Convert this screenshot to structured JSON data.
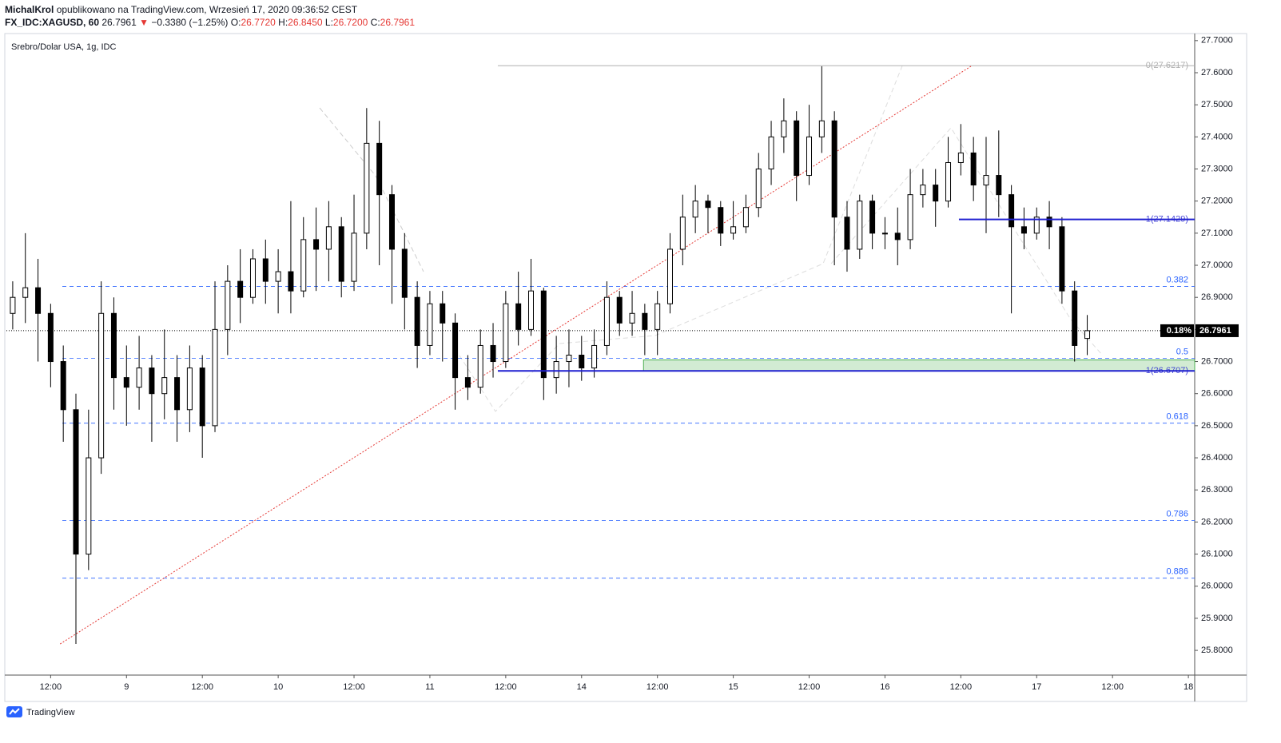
{
  "header": {
    "author": "MichalKrol",
    "published": "opublikowano na TradingView.com, Wrzesień 17, 2020 09:36:52 CEST",
    "symbol": "FX_IDC:XAGUSD, 60",
    "last": "26.7961",
    "arrow": "▼",
    "change": "−0.3380 (−1.25%)",
    "ohlc": [
      {
        "key": "O:",
        "val": "26.7720"
      },
      {
        "key": "H:",
        "val": "26.8450"
      },
      {
        "key": "L:",
        "val": "26.7200"
      },
      {
        "key": "C:",
        "val": "26.7961"
      }
    ]
  },
  "footer": {
    "brand": "TradingView"
  },
  "chart_data": {
    "type": "candlestick",
    "title": "Srebro/Dolar USA, 1g, IDC",
    "up_color": "#ffffff",
    "down_color": "#000000",
    "wick_color": "#000000",
    "x": [
      -6,
      -4,
      -2,
      0,
      2,
      4,
      6,
      8,
      10,
      12,
      14,
      16,
      18,
      20,
      22,
      24,
      26,
      28,
      30,
      32,
      34,
      36,
      38,
      40,
      42,
      44,
      46,
      48,
      50,
      52,
      54,
      56,
      58,
      60,
      62,
      64,
      66,
      68,
      70,
      72,
      74,
      76,
      78,
      80,
      82,
      84,
      86,
      88,
      90,
      92,
      94,
      96,
      98,
      100,
      102,
      104,
      106,
      108,
      110,
      112,
      114,
      116,
      118,
      120,
      122,
      124,
      126,
      128,
      130,
      132,
      134,
      136,
      138,
      140,
      142,
      144,
      146,
      148,
      150,
      152,
      154,
      156,
      158,
      160,
      162,
      164
    ],
    "open": [
      26.85,
      26.9,
      26.93,
      26.85,
      26.7,
      26.55,
      26.1,
      26.4,
      26.85,
      26.65,
      26.62,
      26.68,
      26.6,
      26.65,
      26.55,
      26.68,
      26.5,
      26.8,
      26.95,
      26.9,
      27.02,
      26.95,
      26.98,
      26.92,
      27.08,
      27.05,
      27.12,
      26.95,
      27.1,
      27.38,
      27.22,
      27.05,
      26.9,
      26.75,
      26.88,
      26.82,
      26.65,
      26.62,
      26.75,
      26.7,
      26.88,
      26.8,
      26.92,
      26.65,
      26.7,
      26.72,
      26.68,
      26.75,
      26.9,
      26.82,
      26.85,
      26.8,
      26.88,
      27.05,
      27.15,
      27.2,
      27.18,
      27.1,
      27.12,
      27.18,
      27.3,
      27.4,
      27.45,
      27.28,
      27.4,
      27.45,
      27.15,
      27.05,
      27.2,
      27.1,
      27.1,
      27.08,
      27.22,
      27.25,
      27.2,
      27.32,
      27.35,
      27.25,
      27.28,
      27.22,
      27.12,
      27.1,
      27.15,
      27.12,
      26.92,
      26.772
    ],
    "high": [
      26.95,
      27.1,
      27.02,
      26.88,
      26.75,
      26.6,
      26.55,
      26.95,
      26.9,
      26.75,
      26.78,
      26.72,
      26.8,
      26.72,
      26.75,
      26.72,
      26.95,
      27.0,
      27.05,
      27.05,
      27.08,
      27.05,
      27.2,
      27.15,
      27.18,
      27.2,
      27.15,
      27.22,
      27.49,
      27.45,
      27.25,
      27.1,
      26.95,
      26.92,
      26.92,
      26.85,
      26.72,
      26.8,
      26.82,
      26.92,
      26.98,
      27.02,
      26.93,
      26.78,
      26.8,
      26.78,
      26.8,
      26.95,
      26.92,
      26.92,
      26.88,
      26.92,
      27.1,
      27.22,
      27.25,
      27.22,
      27.2,
      27.2,
      27.22,
      27.35,
      27.45,
      27.52,
      27.48,
      27.5,
      27.62,
      27.48,
      27.2,
      27.22,
      27.22,
      27.15,
      27.18,
      27.3,
      27.3,
      27.3,
      27.4,
      27.44,
      27.4,
      27.4,
      27.42,
      27.25,
      27.18,
      27.18,
      27.2,
      27.15,
      26.95,
      26.845
    ],
    "low": [
      26.8,
      26.82,
      26.7,
      26.62,
      26.45,
      25.82,
      26.05,
      26.35,
      26.55,
      26.5,
      26.55,
      26.45,
      26.52,
      26.45,
      26.48,
      26.4,
      26.48,
      26.72,
      26.82,
      26.88,
      26.88,
      26.85,
      26.85,
      26.9,
      26.92,
      26.95,
      26.9,
      26.92,
      27.05,
      27.0,
      26.88,
      26.8,
      26.68,
      26.72,
      26.7,
      26.55,
      26.58,
      26.6,
      26.65,
      26.68,
      26.75,
      26.78,
      26.58,
      26.6,
      26.62,
      26.64,
      26.65,
      26.72,
      26.78,
      26.78,
      26.72,
      26.72,
      26.85,
      27.0,
      27.1,
      27.1,
      27.06,
      27.08,
      27.1,
      27.15,
      27.25,
      27.35,
      27.2,
      27.25,
      27.35,
      27.0,
      26.98,
      27.02,
      27.05,
      27.05,
      27.0,
      27.05,
      27.18,
      27.12,
      27.18,
      27.28,
      27.2,
      27.1,
      27.15,
      26.85,
      27.05,
      27.08,
      27.05,
      26.88,
      26.7,
      26.72
    ],
    "close": [
      26.9,
      26.93,
      26.85,
      26.7,
      26.55,
      26.1,
      26.4,
      26.85,
      26.65,
      26.62,
      26.68,
      26.6,
      26.65,
      26.55,
      26.68,
      26.5,
      26.8,
      26.95,
      26.9,
      27.02,
      26.95,
      26.98,
      26.92,
      27.08,
      27.05,
      27.12,
      26.95,
      27.1,
      27.38,
      27.22,
      27.05,
      26.9,
      26.75,
      26.88,
      26.82,
      26.65,
      26.62,
      26.75,
      26.7,
      26.88,
      26.8,
      26.92,
      26.65,
      26.7,
      26.72,
      26.68,
      26.75,
      26.9,
      26.82,
      26.85,
      26.8,
      26.88,
      27.05,
      27.15,
      27.2,
      27.18,
      27.1,
      27.12,
      27.18,
      27.3,
      27.4,
      27.45,
      27.28,
      27.4,
      27.45,
      27.15,
      27.05,
      27.2,
      27.1,
      27.1,
      27.08,
      27.22,
      27.25,
      27.2,
      27.32,
      27.35,
      27.25,
      27.28,
      27.22,
      27.12,
      27.1,
      27.15,
      27.12,
      26.92,
      26.75,
      26.7961
    ],
    "xlim": [
      -7,
      181
    ],
    "ylim": [
      25.723,
      27.722
    ],
    "xticks": [
      {
        "value": 0,
        "label": "12:00"
      },
      {
        "value": 12,
        "label": "9"
      },
      {
        "value": 24,
        "label": "12:00"
      },
      {
        "value": 36,
        "label": "10"
      },
      {
        "value": 48,
        "label": "12:00"
      },
      {
        "value": 60,
        "label": "11"
      },
      {
        "value": 72,
        "label": "12:00"
      },
      {
        "value": 84,
        "label": "14"
      },
      {
        "value": 96,
        "label": "12:00"
      },
      {
        "value": 108,
        "label": "15"
      },
      {
        "value": 120,
        "label": "12:00"
      },
      {
        "value": 132,
        "label": "16"
      },
      {
        "value": 144,
        "label": "12:00"
      },
      {
        "value": 156,
        "label": "17"
      },
      {
        "value": 168,
        "label": "12:00"
      },
      {
        "value": 180,
        "label": "18"
      }
    ],
    "yticks": [
      {
        "value": 25.8,
        "label": "25.8000"
      },
      {
        "value": 25.9,
        "label": "25.9000"
      },
      {
        "value": 26.0,
        "label": "26.0000"
      },
      {
        "value": 26.1,
        "label": "26.1000"
      },
      {
        "value": 26.2,
        "label": "26.2000"
      },
      {
        "value": 26.3,
        "label": "26.3000"
      },
      {
        "value": 26.4,
        "label": "26.4000"
      },
      {
        "value": 26.5,
        "label": "26.5000"
      },
      {
        "value": 26.6,
        "label": "26.6000"
      },
      {
        "value": 26.7,
        "label": "26.7000"
      },
      {
        "value": 26.8,
        "label": "26.8000"
      },
      {
        "value": 26.9,
        "label": "26.9000"
      },
      {
        "value": 27.0,
        "label": "27.0000"
      },
      {
        "value": 27.1,
        "label": "27.1000"
      },
      {
        "value": 27.2,
        "label": "27.2000"
      },
      {
        "value": 27.3,
        "label": "27.3000"
      },
      {
        "value": 27.4,
        "label": "27.4000"
      },
      {
        "value": 27.5,
        "label": "27.5000"
      },
      {
        "value": 27.6,
        "label": "27.6000"
      },
      {
        "value": 27.7,
        "label": "27.7000"
      }
    ],
    "fib": {
      "x": [
        1.85,
        181
      ],
      "color": "#2962ff",
      "levels": [
        {
          "value": 26.934,
          "label": "0.382"
        },
        {
          "value": 26.71,
          "label": "0.5"
        },
        {
          "value": 26.508,
          "label": "0.618"
        },
        {
          "value": 26.205,
          "label": "0.786"
        },
        {
          "value": 26.025,
          "label": "0.886"
        }
      ]
    },
    "top_line": {
      "x": [
        70.75,
        181
      ],
      "value": 27.6217,
      "label": "0(27.6217)",
      "color": "#b0b0b0"
    },
    "blue_lines": [
      {
        "x": [
          70.75,
          181
        ],
        "value": 26.6707,
        "label": "1(26.6707)"
      },
      {
        "x": [
          143.7,
          181
        ],
        "value": 27.1429,
        "label": "1(27.1429)"
      }
    ],
    "blue_color": "#1f1fd0",
    "zone": {
      "x": [
        93.8,
        181
      ],
      "y": [
        26.6707,
        26.705
      ],
      "color": "#4caf50"
    },
    "trendline": {
      "x": [
        1.5,
        145.6
      ],
      "y": [
        25.82,
        27.62
      ],
      "color": "#e53935"
    },
    "last_price": {
      "value": 26.7961,
      "label": "26.7961",
      "change": "0.18%"
    }
  }
}
